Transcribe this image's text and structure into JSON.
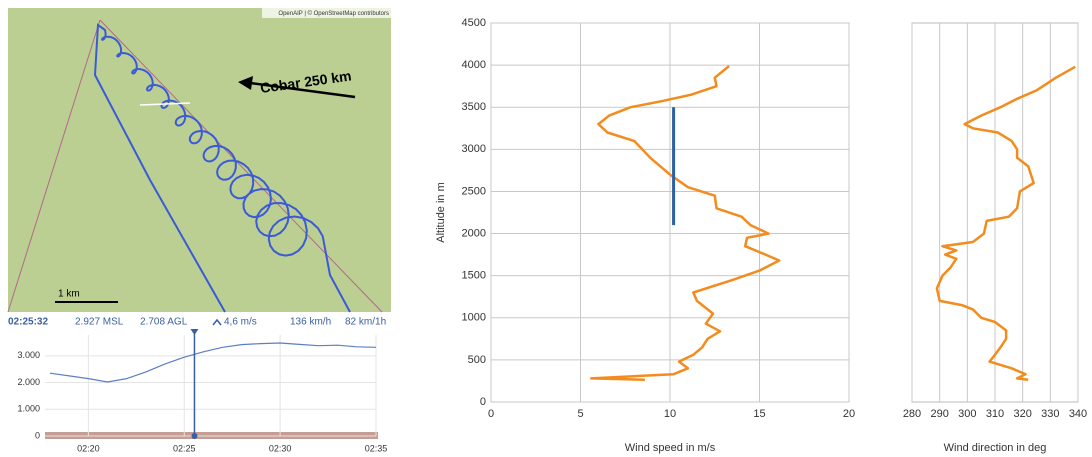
{
  "map": {
    "attribution": "OpenAIP | © OpenStreetMap contributors",
    "annotation": "Cobar 250 km",
    "scale_label": "1 km"
  },
  "status_bar": [
    "02:25:32",
    "2.927 MSL",
    "2.708 AGL",
    "4,6 m/s",
    "136 km/h",
    "82 km/1h"
  ],
  "chart_data": [
    {
      "type": "line",
      "time_axis": true,
      "x": [
        "02:18",
        "02:19",
        "02:20",
        "02:21",
        "02:22",
        "02:23",
        "02:24",
        "02:25",
        "02:26",
        "02:27",
        "02:28",
        "02:29",
        "02:30",
        "02:31",
        "02:32",
        "02:33",
        "02:34",
        "02:35"
      ],
      "series": [
        {
          "color": "#5b7fc4",
          "values": [
            2350,
            2250,
            2150,
            2020,
            2150,
            2400,
            2700,
            2950,
            3150,
            3320,
            3420,
            3460,
            3480,
            3430,
            3380,
            3400,
            3340,
            3320
          ]
        }
      ],
      "xlim": [
        "02:18",
        "02:35"
      ],
      "xticks": [
        "02:20",
        "02:25",
        "02:30",
        "02:35"
      ],
      "ylim": [
        0,
        3780
      ],
      "yticks": [
        0,
        {
          "value": 1000,
          "label": "1.000"
        },
        {
          "value": 2000,
          "label": "2.000"
        },
        {
          "value": 3000,
          "label": "3.000"
        }
      ],
      "grid": true
    },
    {
      "type": "line",
      "x_label": "Wind speed in m/s",
      "y_label": "Altitude in m",
      "x": [
        8.6,
        5.6,
        10.2,
        11.0,
        10.5,
        11.3,
        11.8,
        12.1,
        12.8,
        12.0,
        12.4,
        11.5,
        11.3,
        13.5,
        15.0,
        16.1,
        15.0,
        14.2,
        14.3,
        15.5,
        14.5,
        14.0,
        12.6,
        12.5,
        11.0,
        10.0,
        8.9,
        8.0,
        6.5,
        6.0,
        6.6,
        7.8,
        9.5,
        11.2,
        12.6,
        12.5,
        13.3
      ],
      "series": [
        {
          "color": "#f28c1e",
          "values": [
            265,
            280,
            330,
            400,
            480,
            560,
            650,
            750,
            840,
            930,
            1050,
            1200,
            1300,
            1450,
            1560,
            1680,
            1780,
            1850,
            1950,
            2000,
            2100,
            2200,
            2300,
            2450,
            2550,
            2700,
            2900,
            3100,
            3200,
            3300,
            3400,
            3500,
            3570,
            3650,
            3750,
            3850,
            3990
          ]
        }
      ],
      "reference_line": {
        "x": 10.2,
        "y": [
          2100,
          3500
        ],
        "color": "#2e5fa3"
      },
      "xlim": [
        0,
        20
      ],
      "xticks": [
        0,
        5,
        10,
        15,
        20
      ],
      "ylim": [
        0,
        4500
      ],
      "yticks": [
        0,
        500,
        1000,
        1500,
        2000,
        2500,
        3000,
        3500,
        4000,
        4500
      ],
      "grid": true
    },
    {
      "type": "line",
      "x_label": "Wind direction in deg",
      "x": [
        322,
        318,
        321,
        316,
        308,
        310,
        312,
        314,
        314,
        310,
        305,
        302,
        298,
        290,
        289,
        291,
        294,
        296,
        292,
        296,
        291,
        302,
        306,
        307,
        315,
        318,
        319,
        324,
        322,
        318,
        318,
        316,
        311,
        302,
        299,
        305,
        312,
        318,
        325,
        332,
        339
      ],
      "series": [
        {
          "color": "#f28c1e",
          "values": [
            265,
            280,
            330,
            400,
            480,
            560,
            650,
            750,
            850,
            950,
            1000,
            1100,
            1150,
            1200,
            1350,
            1500,
            1600,
            1700,
            1750,
            1800,
            1850,
            1900,
            2000,
            2150,
            2200,
            2300,
            2500,
            2600,
            2800,
            2900,
            3000,
            3100,
            3200,
            3250,
            3300,
            3400,
            3500,
            3600,
            3700,
            3850,
            3980
          ]
        }
      ],
      "xlim": [
        280,
        340
      ],
      "xticks": [
        280,
        290,
        300,
        310,
        320,
        330,
        340
      ],
      "ylim": [
        0,
        4500
      ],
      "grid": true
    }
  ]
}
